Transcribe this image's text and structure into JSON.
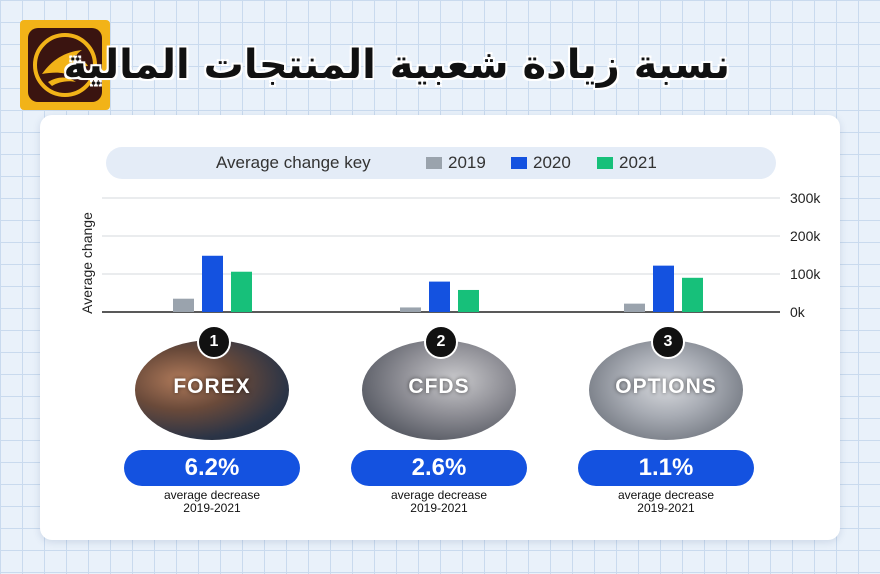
{
  "header": {
    "title": "نسبة زيادة شعبية المنتجات المالية",
    "logo_icon": "eagle-logo-icon"
  },
  "colors": {
    "2019": "#9aa3ad",
    "2020": "#1452e0",
    "2021": "#17c07a",
    "accent": "#1452e0",
    "logo_bg": "#f2b318"
  },
  "chart_data": {
    "type": "bar",
    "legend_title": "Average change key",
    "ylabel": "Average change",
    "y_ticks": [
      "300k",
      "200k",
      "100k",
      "0k"
    ],
    "ylim": [
      0,
      300000
    ],
    "legend_placement": "top",
    "categories": [
      "FOREX",
      "CFDS",
      "OPTIONS"
    ],
    "series": [
      {
        "name": "2019",
        "values": [
          35000,
          12000,
          22000
        ]
      },
      {
        "name": "2020",
        "values": [
          148000,
          80000,
          122000
        ]
      },
      {
        "name": "2021",
        "values": [
          106000,
          58000,
          90000
        ]
      }
    ]
  },
  "products": [
    {
      "rank": "1",
      "name": "FOREX",
      "percent": "6.2%",
      "desc_line1": "average decrease",
      "desc_line2": "2019-2021"
    },
    {
      "rank": "2",
      "name": "CFDS",
      "percent": "2.6%",
      "desc_line1": "average decrease",
      "desc_line2": "2019-2021"
    },
    {
      "rank": "3",
      "name": "OPTIONS",
      "percent": "1.1%",
      "desc_line1": "average decrease",
      "desc_line2": "2019-2021"
    }
  ]
}
